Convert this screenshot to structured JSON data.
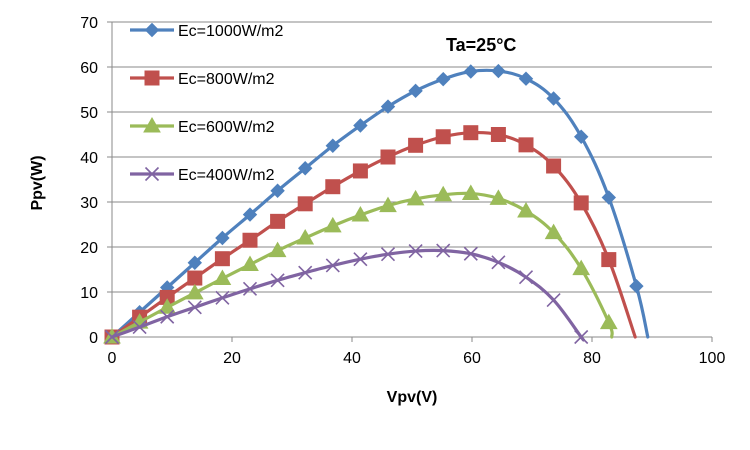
{
  "chart_data": {
    "type": "line",
    "xlabel": "Vpv(V)",
    "ylabel": "Ppv(W)",
    "xlim": [
      0,
      100
    ],
    "ylim": [
      0,
      70
    ],
    "x_ticks": [
      0,
      20,
      40,
      60,
      80,
      100
    ],
    "y_ticks": [
      0,
      10,
      20,
      30,
      40,
      50,
      60,
      70
    ],
    "grid": "horizontal",
    "legend_position": "top-left",
    "annotation": "Ta=25°C",
    "series": [
      {
        "name": "Ec=1000W/m2",
        "color": "#4F81BD",
        "marker": "diamond",
        "x": [
          0,
          4.6,
          9.2,
          13.8,
          18.4,
          23.0,
          27.6,
          32.2,
          36.8,
          41.4,
          46.0,
          50.6,
          55.2,
          59.8,
          64.4,
          69.0,
          73.6,
          78.2,
          82.8,
          87.4
        ],
        "y": [
          0,
          5.5,
          11.0,
          16.5,
          22.0,
          27.2,
          32.5,
          37.5,
          42.5,
          47.0,
          51.2,
          54.7,
          57.3,
          59.0,
          59.1,
          57.4,
          53.0,
          44.5,
          31.0,
          11.3
        ],
        "curve_end": [
          89.3,
          0
        ]
      },
      {
        "name": "Ec=800W/m2",
        "color": "#C0504D",
        "marker": "square",
        "x": [
          0,
          4.6,
          9.2,
          13.8,
          18.4,
          23.0,
          27.6,
          32.2,
          36.8,
          41.4,
          46.0,
          50.6,
          55.2,
          59.8,
          64.4,
          69.0,
          73.6,
          78.2,
          82.8
        ],
        "y": [
          0,
          4.4,
          8.8,
          13.1,
          17.4,
          21.5,
          25.7,
          29.6,
          33.4,
          36.9,
          40.0,
          42.6,
          44.5,
          45.4,
          45.0,
          42.7,
          38.0,
          29.8,
          17.2
        ],
        "curve_end": [
          87.2,
          0
        ]
      },
      {
        "name": "Ec=600W/m2",
        "color": "#9BBB59",
        "marker": "triangle",
        "x": [
          0,
          4.6,
          9.2,
          13.8,
          18.4,
          23.0,
          27.6,
          32.2,
          36.8,
          41.4,
          46.0,
          50.6,
          55.2,
          59.8,
          64.4,
          69.0,
          73.6,
          78.2,
          82.8
        ],
        "y": [
          0,
          3.3,
          6.6,
          9.8,
          13.0,
          16.1,
          19.2,
          22.0,
          24.7,
          27.1,
          29.2,
          30.7,
          31.6,
          31.9,
          30.8,
          28.0,
          23.2,
          15.2,
          3.2
        ],
        "curve_end": [
          83.3,
          0
        ]
      },
      {
        "name": "Ec=400W/m2",
        "color": "#8064A2",
        "marker": "x",
        "x": [
          0,
          4.6,
          9.2,
          13.8,
          18.4,
          23.0,
          27.6,
          32.2,
          36.8,
          41.4,
          46.0,
          50.6,
          55.2,
          59.8,
          64.4,
          69.0,
          73.6,
          78.2
        ],
        "y": [
          0,
          2.2,
          4.5,
          6.6,
          8.7,
          10.7,
          12.6,
          14.3,
          15.9,
          17.3,
          18.4,
          19.1,
          19.2,
          18.5,
          16.6,
          13.3,
          8.2,
          0
        ],
        "curve_end": [
          78.2,
          0
        ]
      }
    ]
  }
}
